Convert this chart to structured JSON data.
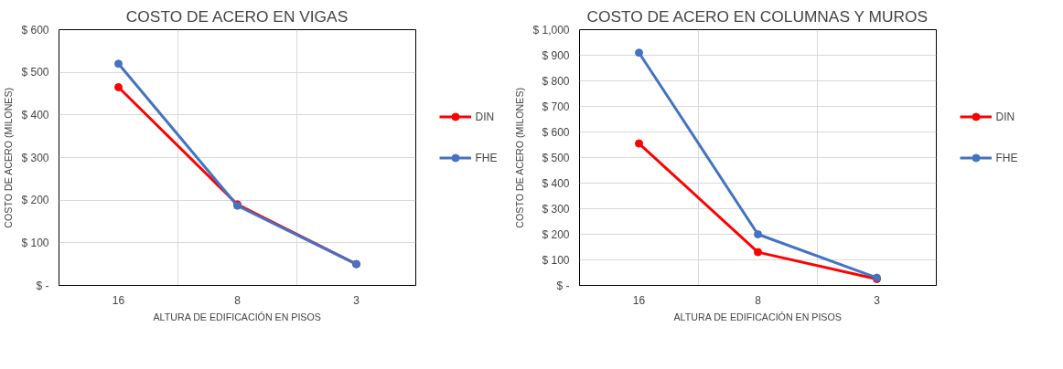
{
  "chart_data": [
    {
      "type": "line",
      "title": "COSTO DE ACERO EN VIGAS",
      "xlabel": "ALTURA DE EDIFICACIÓN EN PISOS",
      "ylabel": "COSTO DE ACERO (MILONES)",
      "categories": [
        "16",
        "8",
        "3"
      ],
      "series": [
        {
          "name": "DIN",
          "color": "#ff0000",
          "values": [
            465,
            190,
            50
          ]
        },
        {
          "name": "FHE",
          "color": "#4472c4",
          "values": [
            520,
            187,
            50
          ]
        }
      ],
      "ylim": [
        0,
        600
      ],
      "yticks": [
        {
          "value": 0,
          "label": "$ -"
        },
        {
          "value": 100,
          "label": "$ 100"
        },
        {
          "value": 200,
          "label": "$ 200"
        },
        {
          "value": 300,
          "label": "$ 300"
        },
        {
          "value": 400,
          "label": "$ 400"
        },
        {
          "value": 500,
          "label": "$ 500"
        },
        {
          "value": 600,
          "label": "$ 600"
        }
      ],
      "grid": true,
      "legend": "right",
      "marker": "circle",
      "line_style": "solid"
    },
    {
      "type": "line",
      "title": "COSTO DE ACERO EN COLUMNAS Y MUROS",
      "xlabel": "ALTURA DE EDIFICACIÓN EN PISOS",
      "ylabel": "COSTO DE ACERO (MILONES)",
      "categories": [
        "16",
        "8",
        "3"
      ],
      "series": [
        {
          "name": "DIN",
          "color": "#ff0000",
          "values": [
            555,
            130,
            25
          ]
        },
        {
          "name": "FHE",
          "color": "#4472c4",
          "values": [
            910,
            200,
            30
          ]
        }
      ],
      "ylim": [
        0,
        1000
      ],
      "yticks": [
        {
          "value": 0,
          "label": "$ -"
        },
        {
          "value": 100,
          "label": "$ 100"
        },
        {
          "value": 200,
          "label": "$ 200"
        },
        {
          "value": 300,
          "label": "$ 300"
        },
        {
          "value": 400,
          "label": "$ 400"
        },
        {
          "value": 500,
          "label": "$ 500"
        },
        {
          "value": 600,
          "label": "$ 600"
        },
        {
          "value": 700,
          "label": "$ 700"
        },
        {
          "value": 800,
          "label": "$ 800"
        },
        {
          "value": 900,
          "label": "$ 900"
        },
        {
          "value": 1000,
          "label": "$ 1,000"
        }
      ],
      "grid": true,
      "legend": "right",
      "marker": "circle",
      "line_style": "solid"
    }
  ]
}
